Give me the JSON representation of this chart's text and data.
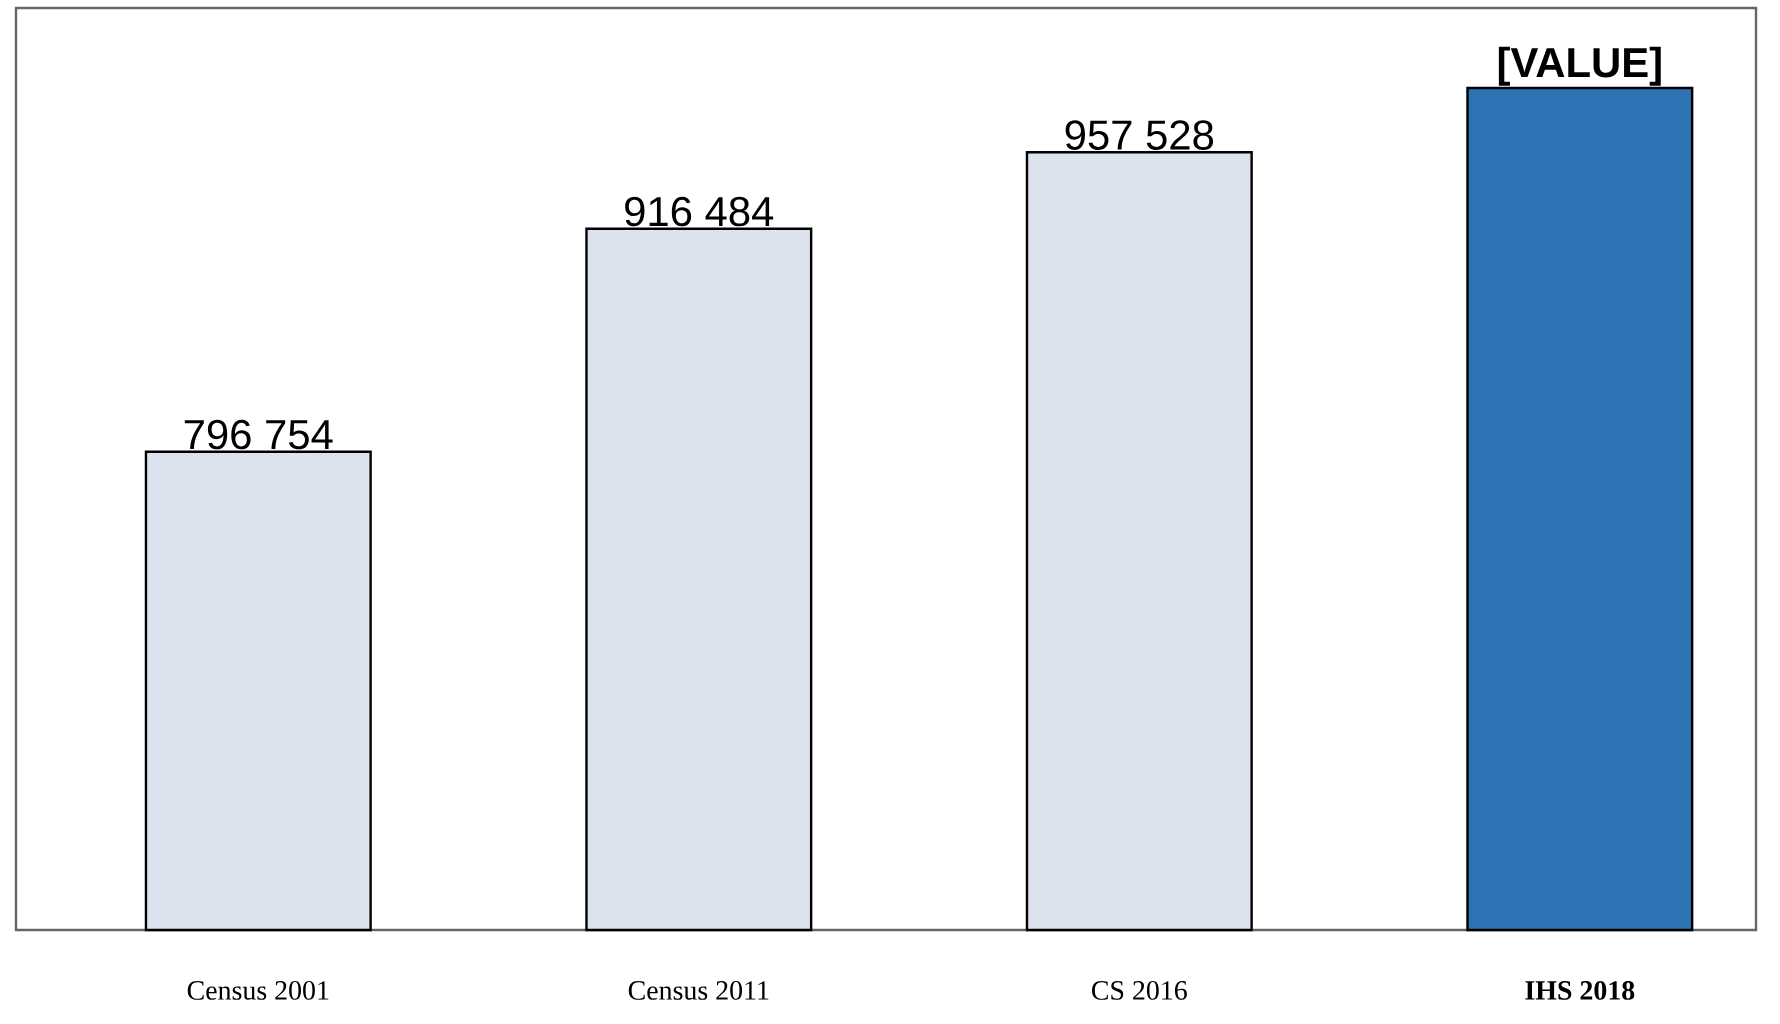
{
  "chart_data": {
    "type": "bar",
    "categories": [
      "Census 2001",
      "Census 2011",
      "CS 2016",
      "**IHS 2018**"
    ],
    "values": [
      796754,
      916484,
      957528,
      992000
    ],
    "value_labels": [
      "796 754",
      "916 484",
      "957 528",
      "**[VALUE]**"
    ],
    "colors": [
      "#dce3ef",
      "#dce3ef",
      "#dce3ef",
      "#2e74b5"
    ],
    "ylim": [
      540000,
      1035000
    ],
    "tick_labels": "x"
  }
}
